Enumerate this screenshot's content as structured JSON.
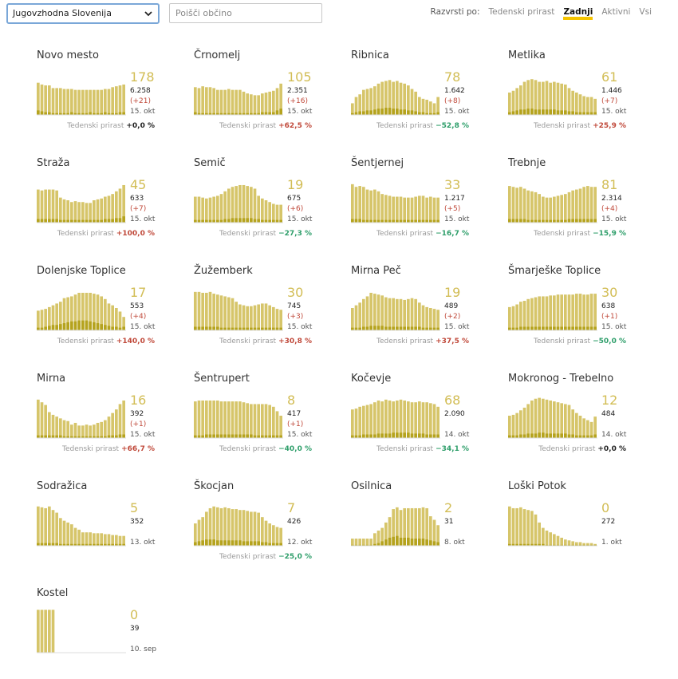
{
  "toolbar": {
    "region": "Jugovzhodna Slovenija",
    "search_placeholder": "Poišči občino",
    "sort_label": "Razvrsti po:",
    "sort_options": [
      {
        "label": "Tedenski prirast",
        "active": false
      },
      {
        "label": "Zadnji",
        "active": true
      },
      {
        "label": "Aktivni",
        "active": false
      },
      {
        "label": "Vsi",
        "active": false
      }
    ]
  },
  "growth_label": "Tedenski prirast",
  "colors": {
    "bar": "#d6c56a",
    "bar_dark": "#b5a31e",
    "accent": "#f5c400",
    "up": "#c0493a",
    "down": "#2e9e6a"
  },
  "municipalities": [
    {
      "name": "Novo mesto",
      "active": "178",
      "total": "6.258",
      "delta": "(+21)",
      "date": "15. okt",
      "growth": "+0,0 %",
      "trend": "zero",
      "active_series": [
        72,
        68,
        66,
        66,
        60,
        60,
        60,
        58,
        58,
        58,
        56,
        56,
        56,
        56,
        56,
        56,
        56,
        56,
        58,
        58,
        62,
        64,
        66,
        68
      ],
      "new_series": [
        10,
        8,
        6,
        6,
        4,
        4,
        4,
        4,
        4,
        6,
        4,
        4,
        4,
        4,
        6,
        4,
        4,
        4,
        6,
        4,
        4,
        4,
        6,
        6
      ]
    },
    {
      "name": "Črnomelj",
      "active": "105",
      "total": "2.351",
      "delta": "(+16)",
      "date": "15. okt",
      "growth": "+62,5 %",
      "trend": "up",
      "active_series": [
        62,
        60,
        64,
        62,
        62,
        60,
        56,
        56,
        56,
        58,
        56,
        56,
        56,
        52,
        48,
        46,
        44,
        44,
        48,
        50,
        52,
        54,
        60,
        70
      ],
      "new_series": [
        6,
        4,
        4,
        4,
        4,
        4,
        4,
        4,
        4,
        4,
        4,
        4,
        4,
        4,
        4,
        4,
        4,
        4,
        6,
        6,
        6,
        6,
        10,
        14
      ]
    },
    {
      "name": "Ribnica",
      "active": "78",
      "total": "1.642",
      "delta": "(+8)",
      "date": "15. okt",
      "growth": "−52,8 %",
      "trend": "down",
      "active_series": [
        26,
        40,
        46,
        56,
        58,
        60,
        64,
        70,
        74,
        76,
        78,
        74,
        76,
        72,
        70,
        66,
        58,
        52,
        40,
        36,
        34,
        30,
        26,
        40
      ],
      "new_series": [
        4,
        6,
        8,
        8,
        10,
        10,
        12,
        14,
        14,
        16,
        16,
        14,
        14,
        12,
        12,
        10,
        10,
        8,
        6,
        6,
        4,
        4,
        4,
        6
      ]
    },
    {
      "name": "Metlika",
      "active": "61",
      "total": "1.446",
      "delta": "(+7)",
      "date": "15. okt",
      "growth": "+25,9 %",
      "trend": "up",
      "active_series": [
        50,
        54,
        60,
        66,
        74,
        78,
        80,
        78,
        74,
        74,
        76,
        72,
        74,
        72,
        70,
        68,
        60,
        54,
        50,
        46,
        42,
        40,
        40,
        36
      ],
      "new_series": [
        6,
        8,
        10,
        12,
        12,
        14,
        14,
        12,
        12,
        12,
        12,
        12,
        12,
        10,
        10,
        10,
        8,
        8,
        6,
        6,
        6,
        6,
        6,
        6
      ]
    },
    {
      "name": "Straža",
      "active": "45",
      "total": "633",
      "delta": "(+7)",
      "date": "15. okt",
      "growth": "+100,0 %",
      "trend": "up",
      "active_series": [
        74,
        72,
        74,
        74,
        74,
        72,
        56,
        52,
        50,
        46,
        48,
        46,
        46,
        44,
        44,
        50,
        52,
        54,
        58,
        60,
        64,
        70,
        76,
        84
      ],
      "new_series": [
        8,
        8,
        8,
        8,
        8,
        8,
        6,
        6,
        6,
        6,
        6,
        6,
        6,
        6,
        6,
        6,
        6,
        6,
        8,
        8,
        8,
        10,
        10,
        14
      ]
    },
    {
      "name": "Semič",
      "active": "19",
      "total": "675",
      "delta": "(+6)",
      "date": "15. okt",
      "growth": "−27,3 %",
      "trend": "down",
      "active_series": [
        58,
        58,
        56,
        54,
        56,
        58,
        60,
        64,
        70,
        76,
        80,
        82,
        84,
        84,
        82,
        80,
        76,
        60,
        54,
        50,
        46,
        42,
        40,
        40
      ],
      "new_series": [
        6,
        6,
        6,
        6,
        6,
        6,
        6,
        6,
        8,
        8,
        10,
        10,
        10,
        10,
        10,
        10,
        8,
        8,
        6,
        6,
        6,
        6,
        6,
        6
      ]
    },
    {
      "name": "Šentjernej",
      "active": "33",
      "total": "1.217",
      "delta": "(+5)",
      "date": "15. okt",
      "growth": "−16,7 %",
      "trend": "down",
      "active_series": [
        86,
        80,
        82,
        80,
        74,
        72,
        74,
        70,
        64,
        62,
        60,
        58,
        58,
        58,
        56,
        56,
        56,
        58,
        60,
        60,
        56,
        58,
        56,
        56
      ],
      "new_series": [
        8,
        8,
        8,
        6,
        6,
        6,
        6,
        6,
        6,
        6,
        6,
        6,
        6,
        6,
        6,
        6,
        6,
        6,
        6,
        6,
        6,
        6,
        6,
        6
      ]
    },
    {
      "name": "Trebnje",
      "active": "81",
      "total": "2.314",
      "delta": "(+4)",
      "date": "15. okt",
      "growth": "−15,9 %",
      "trend": "down",
      "active_series": [
        82,
        80,
        78,
        80,
        76,
        72,
        70,
        68,
        64,
        58,
        56,
        56,
        58,
        60,
        62,
        64,
        68,
        72,
        74,
        76,
        80,
        82,
        80,
        80
      ],
      "new_series": [
        8,
        8,
        8,
        8,
        8,
        6,
        6,
        6,
        6,
        6,
        6,
        6,
        6,
        6,
        6,
        6,
        8,
        8,
        8,
        8,
        8,
        8,
        8,
        8
      ]
    },
    {
      "name": "Dolenjske Toplice",
      "active": "17",
      "total": "553",
      "delta": "(+4)",
      "date": "15. okt",
      "growth": "+140,0 %",
      "trend": "up",
      "active_series": [
        44,
        46,
        48,
        52,
        56,
        60,
        64,
        72,
        74,
        76,
        80,
        84,
        84,
        84,
        84,
        82,
        80,
        76,
        70,
        60,
        56,
        50,
        42,
        30
      ],
      "new_series": [
        6,
        6,
        8,
        10,
        12,
        12,
        14,
        16,
        18,
        20,
        20,
        22,
        22,
        22,
        20,
        18,
        16,
        14,
        12,
        10,
        8,
        8,
        6,
        8
      ]
    },
    {
      "name": "Žužemberk",
      "active": "30",
      "total": "745",
      "delta": "(+3)",
      "date": "15. okt",
      "growth": "+30,8 %",
      "trend": "up",
      "active_series": [
        86,
        86,
        84,
        84,
        86,
        82,
        80,
        78,
        76,
        74,
        72,
        64,
        58,
        56,
        54,
        54,
        56,
        58,
        60,
        60,
        56,
        52,
        48,
        46
      ],
      "new_series": [
        8,
        8,
        8,
        8,
        8,
        8,
        8,
        6,
        6,
        6,
        6,
        6,
        6,
        6,
        6,
        6,
        6,
        6,
        6,
        6,
        6,
        6,
        6,
        6
      ]
    },
    {
      "name": "Mirna Peč",
      "active": "19",
      "total": "489",
      "delta": "(+2)",
      "date": "15. okt",
      "growth": "+37,5 %",
      "trend": "up",
      "active_series": [
        50,
        56,
        62,
        70,
        76,
        84,
        82,
        80,
        78,
        74,
        72,
        72,
        70,
        70,
        68,
        70,
        72,
        70,
        62,
        56,
        52,
        50,
        48,
        46
      ],
      "new_series": [
        6,
        6,
        6,
        8,
        8,
        10,
        10,
        10,
        10,
        8,
        8,
        8,
        8,
        8,
        8,
        8,
        8,
        8,
        8,
        6,
        6,
        6,
        6,
        6
      ]
    },
    {
      "name": "Šmarješke Toplice",
      "active": "30",
      "total": "638",
      "delta": "(+1)",
      "date": "15. okt",
      "growth": "−50,0 %",
      "trend": "down",
      "active_series": [
        52,
        54,
        58,
        64,
        66,
        70,
        72,
        74,
        76,
        76,
        76,
        78,
        78,
        80,
        80,
        80,
        80,
        80,
        82,
        82,
        80,
        80,
        82,
        82
      ],
      "new_series": [
        6,
        6,
        6,
        8,
        8,
        8,
        8,
        8,
        8,
        8,
        8,
        8,
        8,
        8,
        8,
        8,
        8,
        8,
        8,
        8,
        8,
        8,
        8,
        8
      ]
    },
    {
      "name": "Mirna",
      "active": "16",
      "total": "392",
      "delta": "(+1)",
      "date": "15. okt",
      "growth": "+66,7 %",
      "trend": "up",
      "active_series": [
        86,
        80,
        74,
        58,
        52,
        48,
        44,
        40,
        38,
        30,
        34,
        28,
        28,
        30,
        28,
        30,
        34,
        36,
        40,
        48,
        56,
        64,
        76,
        84
      ],
      "new_series": [
        6,
        6,
        6,
        6,
        6,
        6,
        6,
        4,
        4,
        4,
        4,
        4,
        4,
        4,
        4,
        4,
        4,
        4,
        4,
        6,
        6,
        6,
        8,
        8
      ]
    },
    {
      "name": "Šentrupert",
      "active": "8",
      "total": "417",
      "delta": "(+1)",
      "date": "15. okt",
      "growth": "−40,0 %",
      "trend": "down",
      "active_series": [
        82,
        84,
        84,
        84,
        84,
        84,
        84,
        82,
        82,
        82,
        82,
        82,
        82,
        80,
        78,
        76,
        76,
        76,
        76,
        76,
        74,
        70,
        60,
        50
      ],
      "new_series": [
        6,
        6,
        6,
        8,
        8,
        8,
        8,
        8,
        8,
        8,
        8,
        8,
        8,
        8,
        8,
        8,
        6,
        6,
        6,
        6,
        6,
        6,
        6,
        6
      ]
    },
    {
      "name": "Kočevje",
      "active": "68",
      "total": "2.090",
      "delta": "",
      "date": "14. okt",
      "growth": "−34,1 %",
      "trend": "down",
      "active_series": [
        64,
        66,
        70,
        72,
        74,
        76,
        80,
        84,
        82,
        86,
        84,
        82,
        84,
        86,
        84,
        82,
        80,
        80,
        82,
        80,
        80,
        78,
        76,
        70
      ],
      "new_series": [
        6,
        6,
        6,
        8,
        8,
        8,
        8,
        10,
        10,
        10,
        10,
        12,
        12,
        12,
        12,
        12,
        10,
        10,
        10,
        10,
        8,
        8,
        8,
        8
      ]
    },
    {
      "name": "Mokronog - Trebelno",
      "active": "12",
      "total": "484",
      "delta": "",
      "date": "14. okt",
      "growth": "+0,0 %",
      "trend": "zero",
      "active_series": [
        50,
        52,
        56,
        62,
        68,
        76,
        84,
        88,
        90,
        88,
        86,
        84,
        82,
        80,
        78,
        76,
        74,
        64,
        56,
        50,
        44,
        40,
        36,
        48
      ],
      "new_series": [
        6,
        6,
        6,
        8,
        8,
        10,
        10,
        10,
        12,
        12,
        10,
        10,
        10,
        10,
        10,
        10,
        8,
        8,
        6,
        6,
        6,
        6,
        6,
        8
      ]
    },
    {
      "name": "Sodražica",
      "active": "5",
      "total": "352",
      "delta": "",
      "date": "13. okt",
      "growth": "",
      "trend": "none",
      "active_series": [
        88,
        86,
        84,
        88,
        80,
        74,
        62,
        56,
        52,
        48,
        40,
        36,
        30,
        30,
        30,
        28,
        28,
        28,
        26,
        26,
        24,
        24,
        22,
        22
      ],
      "new_series": [
        6,
        6,
        6,
        6,
        6,
        6,
        4,
        4,
        4,
        4,
        4,
        4,
        4,
        4,
        4,
        4,
        4,
        4,
        4,
        4,
        4,
        4,
        4,
        4
      ]
    },
    {
      "name": "Škocjan",
      "active": "7",
      "total": "426",
      "delta": "",
      "date": "12. okt",
      "growth": "−25,0 %",
      "trend": "down",
      "active_series": [
        50,
        58,
        64,
        76,
        84,
        88,
        86,
        84,
        86,
        84,
        82,
        82,
        80,
        80,
        78,
        76,
        76,
        74,
        64,
        56,
        50,
        46,
        42,
        40
      ],
      "new_series": [
        8,
        10,
        12,
        14,
        14,
        14,
        12,
        12,
        12,
        12,
        12,
        12,
        12,
        10,
        10,
        10,
        10,
        10,
        8,
        8,
        6,
        6,
        6,
        6
      ]
    },
    {
      "name": "Osilnica",
      "active": "2",
      "total": "31",
      "delta": "",
      "date": "8. okt",
      "growth": "",
      "trend": "none",
      "active_series": [
        16,
        16,
        16,
        16,
        16,
        16,
        28,
        34,
        40,
        52,
        64,
        82,
        86,
        80,
        84,
        84,
        84,
        84,
        84,
        86,
        84,
        66,
        58,
        46
      ],
      "new_series": [
        2,
        2,
        2,
        2,
        2,
        2,
        4,
        6,
        10,
        14,
        18,
        20,
        22,
        18,
        18,
        18,
        16,
        16,
        16,
        16,
        14,
        12,
        10,
        8
      ]
    },
    {
      "name": "Loški Potok",
      "active": "0",
      "total": "272",
      "delta": "",
      "date": "1. okt",
      "growth": "",
      "trend": "none",
      "active_series": [
        88,
        84,
        84,
        86,
        82,
        80,
        78,
        70,
        52,
        40,
        34,
        30,
        26,
        22,
        18,
        14,
        12,
        10,
        8,
        8,
        6,
        6,
        6,
        4
      ],
      "new_series": [
        4,
        4,
        4,
        4,
        4,
        4,
        4,
        4,
        4,
        4,
        2,
        2,
        2,
        2,
        2,
        2,
        2,
        2,
        2,
        2,
        2,
        2,
        2,
        2
      ]
    },
    {
      "name": "Kostel",
      "active": "0",
      "total": "39",
      "delta": "",
      "date": "10. sep",
      "growth": "",
      "trend": "none",
      "active_series": [
        96,
        96,
        96,
        96,
        96,
        0,
        0,
        0,
        0,
        0,
        0,
        0,
        0,
        0,
        0,
        0,
        0,
        0,
        0,
        0,
        0,
        0,
        0,
        0
      ],
      "new_series": [
        0,
        0,
        0,
        0,
        0,
        0,
        0,
        0,
        0,
        0,
        0,
        0,
        0,
        0,
        0,
        0,
        0,
        0,
        0,
        0,
        0,
        0,
        0,
        0
      ]
    }
  ]
}
